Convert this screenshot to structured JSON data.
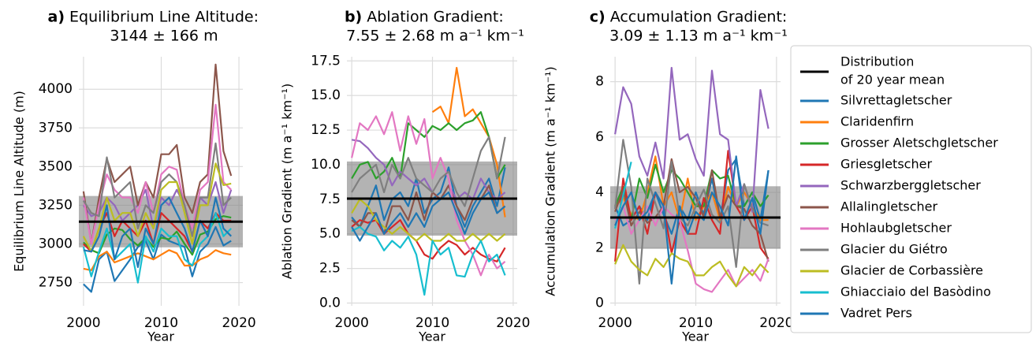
{
  "chart_data": [
    {
      "type": "line",
      "panel": "a)",
      "title": "Equilibrium Line Altitude:",
      "subtitle": "3144 ± 166 m",
      "xlabel": "Year",
      "ylabel": "Equilibrium Line Altitude (m)",
      "xlim": [
        1999.4,
        2020.5
      ],
      "xticks": [
        2000,
        2010,
        2020
      ],
      "ylim": [
        2600,
        4210
      ],
      "yticks": [
        2750,
        3000,
        3250,
        3500,
        3750,
        4000
      ],
      "grid": true,
      "mean": 3144,
      "std": 166,
      "x": [
        2000,
        2001,
        2002,
        2003,
        2004,
        2005,
        2006,
        2007,
        2008,
        2009,
        2010,
        2011,
        2012,
        2013,
        2014,
        2015,
        2016,
        2017,
        2018,
        2019
      ],
      "series": [
        {
          "name": "Silvrettagletscher",
          "color": "#1f77b4",
          "values": [
            2740,
            2690,
            2900,
            2950,
            2760,
            2830,
            2900,
            2980,
            3020,
            2900,
            3060,
            3020,
            3000,
            2980,
            2790,
            2950,
            3000,
            3110,
            2990,
            3020
          ]
        },
        {
          "name": "Claridenfirn",
          "color": "#ff7f0e",
          "values": [
            2840,
            2830,
            2920,
            2950,
            2880,
            2900,
            2920,
            2940,
            2920,
            2900,
            2930,
            2960,
            2940,
            2860,
            2860,
            2900,
            2920,
            2960,
            2940,
            2930
          ]
        },
        {
          "name": "Grosser Aletschgletscher",
          "color": "#2ca02c",
          "values": [
            3010,
            2960,
            2940,
            3060,
            3100,
            3090,
            3030,
            2990,
            3040,
            2980,
            3040,
            3030,
            3080,
            3000,
            2930,
            3060,
            3080,
            3160,
            3180,
            3170
          ]
        },
        {
          "name": "Griesgletscher",
          "color": "#d62728",
          "values": [
            3000,
            2950,
            3100,
            3200,
            3050,
            3150,
            3100,
            3050,
            3150,
            3000,
            3200,
            3150,
            3100,
            3050,
            2950,
            3150,
            3100,
            3200,
            3150,
            3150
          ]
        },
        {
          "name": "Schwarzberggletscher",
          "color": "#9467bd",
          "values": [
            3250,
            3180,
            3200,
            3300,
            3250,
            3150,
            3200,
            3250,
            3350,
            3100,
            3300,
            3250,
            3350,
            3250,
            3100,
            3300,
            3250,
            3400,
            3200,
            3350
          ]
        },
        {
          "name": "Allalingletscher",
          "color": "#8c564b",
          "values": [
            3340,
            3000,
            3300,
            3550,
            3400,
            3450,
            3500,
            3250,
            3400,
            3300,
            3580,
            3580,
            3640,
            3300,
            3200,
            3400,
            3450,
            4160,
            3600,
            3440
          ]
        },
        {
          "name": "Hohlaubgletscher",
          "color": "#e377c2",
          "values": [
            3300,
            3000,
            3250,
            3450,
            3350,
            3300,
            3300,
            3200,
            3400,
            3200,
            3450,
            3500,
            3480,
            3250,
            3100,
            3350,
            3400,
            3900,
            3400,
            3350
          ]
        },
        {
          "name": "Glacier du Giétro",
          "color": "#7f7f7f",
          "values": [
            3280,
            3200,
            3180,
            3560,
            3300,
            3350,
            3400,
            3100,
            3250,
            3200,
            3400,
            3450,
            3400,
            3250,
            3050,
            3300,
            3300,
            3650,
            3250,
            3300
          ]
        },
        {
          "name": "Glacier de Corbassière",
          "color": "#bcbd22",
          "values": [
            3050,
            2950,
            3100,
            3300,
            3150,
            3200,
            3200,
            3050,
            3200,
            3100,
            3350,
            3400,
            3400,
            3200,
            3000,
            3250,
            3250,
            3520,
            3380,
            3390
          ]
        },
        {
          "name": "Ghiacciaio del Basòdino",
          "color": "#17becf",
          "values": [
            2980,
            2790,
            2950,
            3100,
            2900,
            2950,
            3000,
            2750,
            3050,
            2950,
            3100,
            3050,
            3050,
            2900,
            2860,
            3000,
            3050,
            3200,
            3050,
            3100
          ]
        },
        {
          "name": "Vadret Pers",
          "color": "#1f77b4",
          "values": [
            2960,
            2950,
            3050,
            3250,
            2900,
            3050,
            3100,
            2850,
            3100,
            3000,
            3250,
            3300,
            3200,
            3100,
            2950,
            3150,
            3050,
            3300,
            3100,
            3050
          ]
        }
      ]
    },
    {
      "type": "line",
      "panel": "b)",
      "title": "Ablation Gradient:",
      "subtitle": "7.55 ± 2.68 m a⁻¹ km⁻¹",
      "xlabel": "Year",
      "ylabel": "Ablation Gradient (m a⁻¹ km⁻¹)",
      "xlim": [
        1999.4,
        2020.5
      ],
      "xticks": [
        2000,
        2010,
        2020
      ],
      "ylim": [
        -0.2,
        17.8
      ],
      "yticks": [
        {
          "value": 0,
          "label": "0.0"
        },
        2.5,
        {
          "value": 5,
          "label": "5.0"
        },
        7.5,
        {
          "value": 10,
          "label": "10.0"
        },
        12.5,
        {
          "value": 15,
          "label": "15.0"
        },
        17.5
      ],
      "grid": true,
      "mean": 7.55,
      "std": 2.68,
      "x": [
        2000,
        2001,
        2002,
        2003,
        2004,
        2005,
        2006,
        2007,
        2008,
        2009,
        2010,
        2011,
        2012,
        2013,
        2014,
        2015,
        2016,
        2017,
        2018,
        2019
      ],
      "series": [
        {
          "name": "Silvrettagletscher",
          "color": "#1f77b4",
          "values": [
            6.2,
            5.5,
            7,
            8.5,
            6,
            7.5,
            8,
            7,
            9,
            6.5,
            7.5,
            8,
            9.8,
            7,
            5.5,
            7,
            8,
            9,
            7,
            9.8
          ]
        },
        {
          "name": "Claridenfirn",
          "color": "#ff7f0e",
          "values": [
            null,
            null,
            null,
            null,
            null,
            null,
            null,
            null,
            null,
            null,
            13.8,
            14.2,
            13,
            17,
            13.5,
            14,
            13,
            12,
            10,
            6.2
          ]
        },
        {
          "name": "Grosser Aletschgletscher",
          "color": "#2ca02c",
          "values": [
            9,
            10,
            10.2,
            9,
            9.5,
            10.5,
            9,
            13,
            12.5,
            12,
            12.8,
            12.5,
            13,
            12.5,
            13,
            13.2,
            13.8,
            12,
            9,
            10
          ]
        },
        {
          "name": "Griesgletscher",
          "color": "#d62728",
          "values": [
            5.5,
            6,
            5.8,
            6,
            5,
            5.5,
            6,
            5,
            4.5,
            3.5,
            3.2,
            4,
            4.5,
            4.2,
            3.5,
            4,
            3.5,
            3.2,
            3,
            4
          ]
        },
        {
          "name": "Schwarzberggletscher",
          "color": "#9467bd",
          "values": [
            11.8,
            11.7,
            11.2,
            10.5,
            10,
            8.5,
            9.5,
            9,
            8.5,
            9,
            8,
            7.5,
            8.5,
            7.5,
            8,
            7.5,
            9,
            8,
            7.5,
            8
          ]
        },
        {
          "name": "Allalingletscher",
          "color": "#8c564b",
          "values": [
            6,
            5.5,
            6.5,
            6.5,
            5,
            7,
            7,
            6,
            8,
            6,
            8,
            7.5,
            8.5,
            7,
            6,
            7.5,
            7.5,
            8.5,
            6.5,
            7
          ]
        },
        {
          "name": "Hohlaubgletscher",
          "color": "#e377c2",
          "values": [
            10.5,
            13,
            12.5,
            13.5,
            12.2,
            13.8,
            11,
            13.5,
            11.5,
            13.3,
            9,
            10.5,
            9,
            6,
            4.5,
            3.5,
            2,
            3.5,
            2.5,
            3
          ]
        },
        {
          "name": "Glacier du Giétro",
          "color": "#7f7f7f",
          "values": [
            8,
            9,
            9.5,
            10,
            8,
            10,
            9,
            10.5,
            9,
            8.5,
            8,
            9,
            9.5,
            8,
            7,
            9,
            11,
            12,
            9,
            12
          ]
        },
        {
          "name": "Glacier de Corbassière",
          "color": "#bcbd22",
          "values": [
            6.5,
            7.5,
            7,
            6,
            5.5,
            5,
            5.5,
            5,
            4.5,
            5,
            4.5,
            4.5,
            5,
            4.5,
            4.5,
            5,
            4.5,
            5,
            4.5,
            5
          ]
        },
        {
          "name": "Ghiacciaio del Basòdino",
          "color": "#17becf",
          "values": [
            5.2,
            5.5,
            5,
            4.8,
            3.8,
            4.5,
            4,
            4.8,
            3.5,
            0.6,
            4.5,
            3.5,
            4,
            2,
            1.9,
            3.5,
            4.5,
            3,
            3.5,
            2
          ]
        },
        {
          "name": "Vadret Pers",
          "color": "#1f77b4",
          "values": [
            5.5,
            4.5,
            5.5,
            6.5,
            5,
            5.8,
            6.5,
            5.5,
            6.5,
            5.5,
            7,
            7.5,
            8,
            6.5,
            5,
            6.5,
            7.5,
            8,
            6.5,
            7
          ]
        }
      ]
    },
    {
      "type": "line",
      "panel": "c)",
      "title": "Accumulation Gradient:",
      "subtitle": "3.09 ± 1.13 m a⁻¹ km⁻¹",
      "xlabel": "Year",
      "ylabel": "Accumulation Gradient (m a⁻¹ km⁻¹)",
      "xlim": [
        1999.4,
        2020.5
      ],
      "xticks": [
        2000,
        2010,
        2020
      ],
      "ylim": [
        -0.1,
        8.9
      ],
      "yticks": [
        0,
        2,
        4,
        6,
        8
      ],
      "grid": true,
      "mean": 3.09,
      "std": 1.13,
      "legend": "outside right",
      "band_label": [
        "Distribution",
        "of 20 year mean"
      ],
      "mean_color": "#000000",
      "x": [
        2000,
        2001,
        2002,
        2003,
        2004,
        2005,
        2006,
        2007,
        2008,
        2009,
        2010,
        2011,
        2012,
        2013,
        2014,
        2015,
        2016,
        2017,
        2018,
        2019
      ],
      "series": [
        {
          "name": "Silvrettagletscher",
          "color": "#1f77b4",
          "values": [
            3.5,
            2.8,
            3,
            3.5,
            3,
            4,
            3.2,
            2.5,
            3.5,
            3,
            4,
            3.2,
            4.5,
            3,
            4.8,
            5.2,
            3.5,
            4,
            3,
            4.8
          ]
        },
        {
          "name": "Claridenfirn",
          "color": "#ff7f0e",
          "values": [
            3.5,
            3.8,
            3.2,
            3,
            4,
            5.3,
            3.5,
            4,
            3,
            4.5,
            3,
            3.5,
            4,
            3,
            4.2,
            3.5,
            4,
            3.5,
            3,
            3
          ]
        },
        {
          "name": "Grosser Aletschgletscher",
          "color": "#2ca02c",
          "values": [
            3.5,
            4.2,
            3,
            4.5,
            3.8,
            5,
            4,
            4.8,
            4.5,
            4,
            3.5,
            3.5,
            4.8,
            4.5,
            4.6,
            3.5,
            3.5,
            4,
            3.5,
            3.9
          ]
        },
        {
          "name": "Griesgletscher",
          "color": "#d62728",
          "values": [
            1.5,
            4.5,
            3,
            3.5,
            2.5,
            4,
            3.5,
            1.8,
            3,
            2.5,
            2.5,
            3.8,
            3,
            2.5,
            5.5,
            3.5,
            3,
            3.5,
            2,
            1.6
          ]
        },
        {
          "name": "Schwarzberggletscher",
          "color": "#9467bd",
          "values": [
            6.1,
            7.8,
            7.2,
            5.3,
            4.6,
            5.8,
            4.5,
            8.5,
            5.9,
            6.1,
            5.2,
            4.6,
            8.4,
            6.1,
            5.9,
            3.5,
            4.3,
            3.3,
            7.7,
            6.3
          ]
        },
        {
          "name": "Allalingletscher",
          "color": "#8c564b",
          "values": [
            3.3,
            4.1,
            2.8,
            3.3,
            2.9,
            3.1,
            3.5,
            5.2,
            4,
            4.2,
            3.8,
            3.1,
            4.8,
            3.1,
            3.9,
            3.5,
            3.4,
            2.8,
            2.5,
            1.5
          ]
        },
        {
          "name": "Hohlaubgletscher",
          "color": "#e377c2",
          "values": [
            3,
            3.5,
            2.5,
            3,
            3.5,
            2.8,
            3.5,
            3.2,
            3,
            1.9,
            0.7,
            0.5,
            0.4,
            0.8,
            1.2,
            0.6,
            0.9,
            1.2,
            0.8,
            1.6
          ]
        },
        {
          "name": "Glacier du Giétro",
          "color": "#7f7f7f",
          "values": [
            3.4,
            5.9,
            4.2,
            0.7,
            4.5,
            3.6,
            2.7,
            5.1,
            3.1,
            2.8,
            3.5,
            4.1,
            3.2,
            2.9,
            3.5,
            1.3,
            4.3,
            3.4,
            2.9,
            2.8
          ]
        },
        {
          "name": "Glacier de Corbassière",
          "color": "#bcbd22",
          "values": [
            1.4,
            2.1,
            1.5,
            1.2,
            1,
            1.6,
            1.3,
            1.8,
            1.6,
            1.5,
            1,
            1,
            1.3,
            1.5,
            1,
            0.6,
            1.3,
            1,
            1.4,
            1.1
          ]
        },
        {
          "name": "Ghiacciaio del Basòdino",
          "color": "#17becf",
          "values": [
            2.7,
            3.9,
            5.1,
            null,
            null,
            null,
            null,
            null,
            null,
            null,
            null,
            null,
            null,
            null,
            null,
            null,
            null,
            null,
            null,
            null
          ]
        },
        {
          "name": "Vadret Pers",
          "color": "#1f77b4",
          "values": [
            2.8,
            3.5,
            4,
            3,
            3.3,
            4,
            3.5,
            0.7,
            3.5,
            2.5,
            3.3,
            3,
            4,
            3.5,
            2.8,
            5.3,
            3,
            3.8,
            2.5,
            4.8
          ]
        }
      ]
    }
  ]
}
